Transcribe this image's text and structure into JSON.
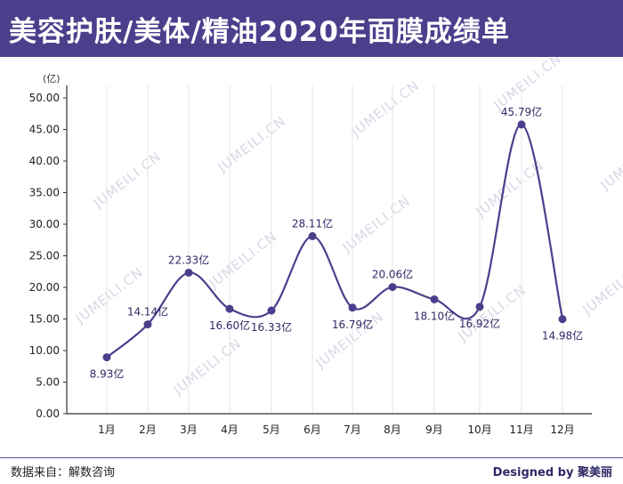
{
  "header": {
    "title": "美容护肤/美体/精油2020年面膜成绩单"
  },
  "footer": {
    "source": "数据来自：解数咨询",
    "brand": "Designed by 聚美丽"
  },
  "watermark": "JUMEILI.CN",
  "colors": {
    "header_bg": "#4b3f8c",
    "line": "#4b3f8c",
    "label": "#2f2a66"
  },
  "chart_data": {
    "type": "line",
    "title": "",
    "xlabel": "",
    "ylabel": "",
    "y_unit": "(亿)",
    "value_suffix": "亿",
    "categories": [
      "1月",
      "2月",
      "3月",
      "4月",
      "5月",
      "6月",
      "7月",
      "8月",
      "9月",
      "10月",
      "11月",
      "12月"
    ],
    "series": [
      {
        "values": [
          8.93,
          14.14,
          22.33,
          16.6,
          16.33,
          28.11,
          16.79,
          20.06,
          18.1,
          16.92,
          45.79,
          14.98
        ]
      }
    ],
    "ylim": [
      0,
      50
    ],
    "yticks": [
      "0.00",
      "5.00",
      "10.00",
      "15.00",
      "20.00",
      "25.00",
      "30.00",
      "35.00",
      "40.00",
      "45.00",
      "50.00"
    ],
    "data_labels": [
      "8.93亿",
      "14.14亿",
      "22.33亿",
      "16.60亿",
      "16.33亿",
      "28.11亿",
      "16.79亿",
      "20.06亿",
      "18.10亿",
      "16.92亿",
      "45.79亿",
      "14.98亿"
    ],
    "grid": "vertical",
    "smooth": true
  }
}
